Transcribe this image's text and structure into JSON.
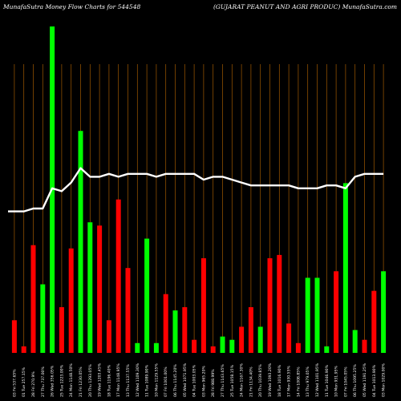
{
  "header": {
    "left": "MunafaSutra  Money Flow  Charts for 544548",
    "right": "(GUJARAT PEANUT AND AGRI PRODUC) MunafaSutra.com"
  },
  "chart_data": {
    "type": "bar",
    "title": "MunafaSutra  Money Flow  Charts for 544548",
    "subtitle": "(GUJARAT PEANUT AND AGRI PRODUC) MunafaSutra.com",
    "categories": [
      "03 Fri Apr 2025",
      "01 Tue Apr 2025",
      "28 Fri Mar 2025",
      "27 Thu Mar 2025",
      "26 Wed Mar 2025",
      "25 Tue Mar 2025",
      "24 Mon Mar 2025",
      "21 Fri Mar 2025",
      "20 Thu Mar 2025",
      "19 Wed Mar 2025",
      "18 Tue Mar 2025",
      "17 Mon Mar 2025",
      "13 Thu Mar 2025",
      "12 Wed Mar 2025",
      "11 Tue Mar 2025",
      "10 Mon Mar 2025",
      "07 Fri Mar 2025",
      "06 Thu Mar 2025",
      "05 Wed Mar 2025",
      "04 Tue Mar 2025",
      "03 Mon Mar 2025",
      "28 Fri Feb 2025",
      "27 Thu Feb 2025",
      "25 Tue Feb 2025",
      "24 Mon Feb 2025",
      "21 Fri Feb 2025",
      "20 Thu Feb 2025",
      "19 Wed Feb 2025",
      "18 Tue Feb 2025",
      "17 Mon Feb 2025",
      "14 Fri Feb 2025",
      "13 Thu Feb 2025",
      "12 Wed Feb 2025",
      "11 Tue Feb 2025",
      "10 Mon Feb 2025",
      "07 Fri Feb 2025",
      "06 Thu Feb 2025",
      "05 Wed Feb 2025",
      "04 Tue Feb 2025",
      "03 Mon Feb 2025"
    ],
    "x_labels": [
      "03 Fri 537.65%",
      "01 Tue 257.15%",
      "28 Fri 270.9%",
      "27 Thu 737.00%",
      "26 Wed 356.05%",
      "25 Tue 1223.00%",
      "24 Mon 1148.50%",
      "21 Fri 1230.05%",
      "20 Thu 1293.05%",
      "19 Wed 1203.45%",
      "18 Tue 1196.40%",
      "17 Mon 1148.95%",
      "13 Thu 1137.55%",
      "12 Wed 1109.30%",
      "11 Tue 1089.90%",
      "10 Mon 1129.55%",
      "07 Fri 1001.00%",
      "06 Thu 1145.20%",
      "05 Wed 1071.95%",
      "04 Tue 1003.05%",
      "03 Mon 965.20%",
      "28 Fri 988.99%",
      "27 Thu 1143.65%",
      "25 Tue 1058.15%",
      "24 Mon 1167.30%",
      "21 Fri 1134.40%",
      "20 Thu 1039.85%",
      "19 Wed 1093.20%",
      "18 Tue 1016.90%",
      "17 Mon 930.55%",
      "14 Fri 1008.85%",
      "13 Thu 979.05%",
      "12 Wed 1101.95%",
      "11 Tue 1046.90%",
      "10 Mon 931.95%",
      "07 Fri 1045.05%",
      "06 Thu 1095.25%",
      "05 Wed 1191.25%",
      "04 Tue 1013.90%",
      "03 Mon 1029.00%"
    ],
    "series": [
      {
        "values": [
          10,
          2,
          33,
          21,
          100,
          14,
          32,
          68,
          40,
          39,
          10,
          47,
          26,
          3,
          35,
          3,
          18,
          13,
          14,
          4,
          29,
          2,
          5,
          4,
          8,
          14,
          8,
          29,
          30,
          9,
          3,
          23,
          23,
          2,
          25,
          52,
          7,
          4,
          19,
          25
        ],
        "colors": [
          "red",
          "red",
          "red",
          "green",
          "green",
          "red",
          "red",
          "green",
          "green",
          "red",
          "red",
          "red",
          "red",
          "green",
          "green",
          "green",
          "red",
          "green",
          "red",
          "red",
          "red",
          "red",
          "green",
          "green",
          "red",
          "red",
          "green",
          "red",
          "red",
          "red",
          "red",
          "green",
          "green",
          "green",
          "red",
          "green",
          "green",
          "red",
          "red",
          "green"
        ]
      }
    ],
    "line": [
      49,
      49,
      50,
      50,
      57,
      56,
      59,
      64,
      61,
      61,
      62,
      61,
      62,
      62,
      62,
      61,
      62,
      62,
      62,
      62,
      60,
      61,
      61,
      60,
      59,
      58,
      58,
      58,
      58,
      58,
      57,
      57,
      57,
      58,
      58,
      57,
      61,
      62,
      62,
      62
    ],
    "ylim": [
      0,
      100
    ],
    "colors": {
      "positive": "#00ff00",
      "negative": "#ff0000",
      "grid": "#a05a00",
      "line": "#ffffff",
      "background": "#000000"
    },
    "grid": true
  }
}
